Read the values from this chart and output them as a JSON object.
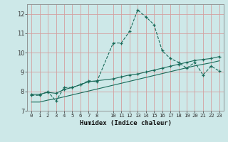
{
  "title": "",
  "xlabel": "Humidex (Indice chaleur)",
  "background_color": "#cde8e8",
  "grid_color_major": "#d4a0a0",
  "grid_color_minor": "#e8d0d0",
  "line_color": "#1a6b5a",
  "x_ticks": [
    0,
    1,
    2,
    3,
    4,
    5,
    6,
    7,
    8,
    10,
    11,
    12,
    13,
    14,
    15,
    16,
    17,
    18,
    19,
    20,
    21,
    22,
    23
  ],
  "xlim": [
    -0.5,
    23.5
  ],
  "ylim": [
    7.0,
    12.5
  ],
  "y_ticks": [
    7,
    8,
    9,
    10,
    11,
    12
  ],
  "series1_x": [
    0,
    1,
    2,
    3,
    4,
    5,
    6,
    7,
    8,
    10,
    11,
    12,
    13,
    14,
    15,
    16,
    17,
    18,
    19,
    20,
    21,
    22,
    23
  ],
  "series1_y": [
    7.8,
    7.8,
    8.0,
    7.5,
    8.2,
    8.2,
    8.35,
    8.55,
    8.5,
    10.5,
    10.5,
    11.1,
    12.2,
    11.85,
    11.45,
    10.1,
    9.7,
    9.5,
    9.2,
    9.5,
    8.85,
    9.3,
    9.05
  ],
  "series2_x": [
    0,
    1,
    2,
    3,
    4,
    5,
    6,
    7,
    8,
    10,
    11,
    12,
    13,
    14,
    15,
    16,
    17,
    18,
    19,
    20,
    21,
    22,
    23
  ],
  "series2_y": [
    7.85,
    7.85,
    7.95,
    7.9,
    8.1,
    8.2,
    8.35,
    8.5,
    8.55,
    8.65,
    8.75,
    8.85,
    8.9,
    9.0,
    9.1,
    9.2,
    9.3,
    9.4,
    9.5,
    9.6,
    9.65,
    9.7,
    9.8
  ],
  "series3_x": [
    0,
    1,
    2,
    3,
    4,
    5,
    6,
    7,
    8,
    10,
    11,
    12,
    13,
    14,
    15,
    16,
    17,
    18,
    19,
    20,
    21,
    22,
    23
  ],
  "series3_y": [
    7.45,
    7.45,
    7.55,
    7.62,
    7.72,
    7.82,
    7.92,
    8.02,
    8.12,
    8.32,
    8.42,
    8.52,
    8.62,
    8.72,
    8.82,
    8.92,
    9.02,
    9.12,
    9.22,
    9.32,
    9.4,
    9.48,
    9.58
  ]
}
